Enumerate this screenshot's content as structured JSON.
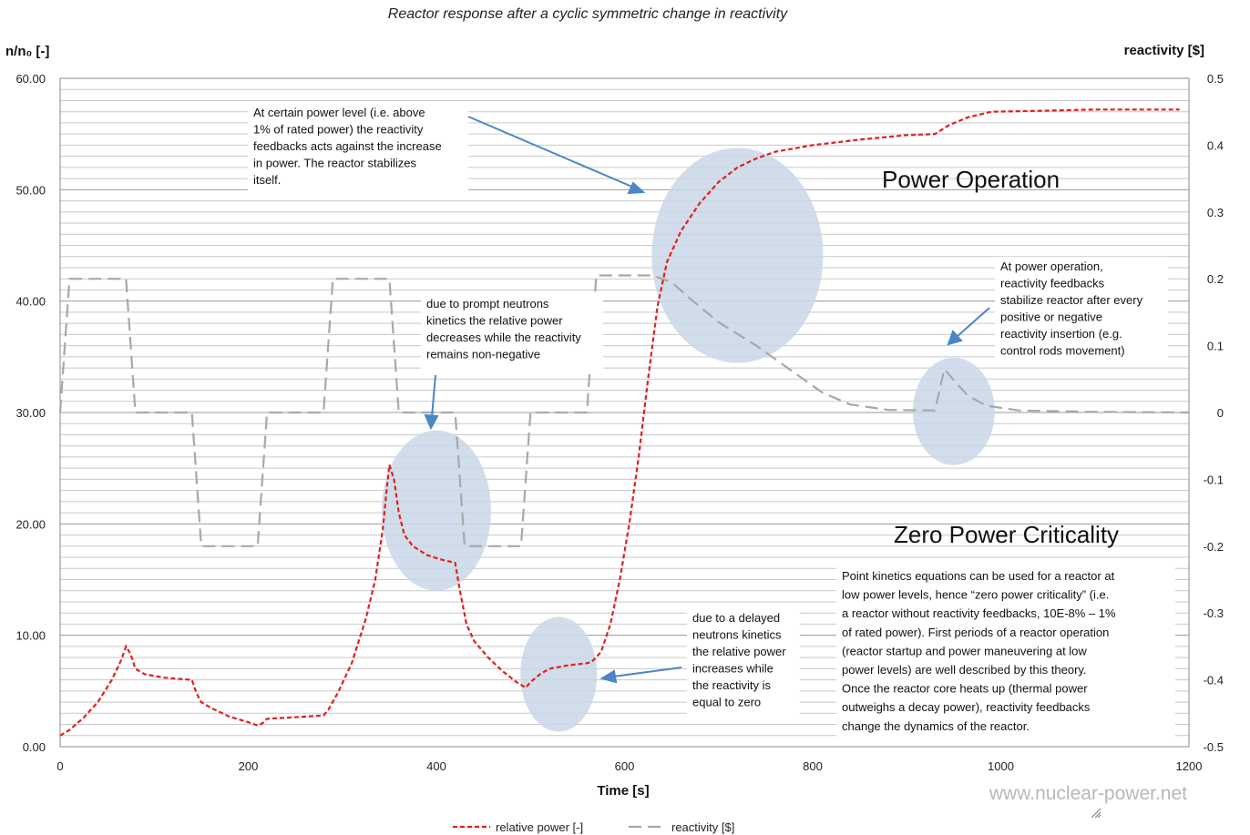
{
  "chart_data": {
    "type": "line",
    "title": "Reactor response after a cyclic symmetric change in reactivity",
    "xlabel": "Time [s]",
    "ylabel_left": "n/n₀ [-]",
    "ylabel_right": "reactivity [$]",
    "xlim": [
      0,
      1200
    ],
    "ylim_left": [
      0,
      60
    ],
    "ylim_right": [
      -0.5,
      0.5
    ],
    "x_ticks": [
      "0",
      "200",
      "400",
      "600",
      "800",
      "1000",
      "1200"
    ],
    "y_left_ticks": [
      "0.00",
      "10.00",
      "20.00",
      "30.00",
      "40.00",
      "50.00",
      "60.00"
    ],
    "y_right_ticks": [
      "-0.5",
      "-0.4",
      "-0.3",
      "-0.2",
      "-0.1",
      "0",
      "0.1",
      "0.2",
      "0.3",
      "0.4",
      "0.5"
    ],
    "series": [
      {
        "name": "relative power [-]",
        "color": "#e0201c",
        "axis": "left",
        "points": [
          [
            0,
            1.0
          ],
          [
            10,
            1.5
          ],
          [
            25,
            2.6
          ],
          [
            40,
            4.0
          ],
          [
            55,
            6.0
          ],
          [
            65,
            7.8
          ],
          [
            70,
            9.0
          ],
          [
            75,
            8.3
          ],
          [
            80,
            7.0
          ],
          [
            90,
            6.5
          ],
          [
            110,
            6.2
          ],
          [
            140,
            6.0
          ],
          [
            145,
            4.8
          ],
          [
            150,
            4.0
          ],
          [
            160,
            3.5
          ],
          [
            180,
            2.7
          ],
          [
            200,
            2.2
          ],
          [
            210,
            1.9
          ],
          [
            215,
            2.1
          ],
          [
            220,
            2.5
          ],
          [
            240,
            2.6
          ],
          [
            260,
            2.7
          ],
          [
            280,
            2.8
          ],
          [
            285,
            3.3
          ],
          [
            295,
            4.8
          ],
          [
            310,
            7.5
          ],
          [
            325,
            11.5
          ],
          [
            335,
            15.0
          ],
          [
            343,
            19.5
          ],
          [
            347,
            23.0
          ],
          [
            350,
            25.3
          ],
          [
            355,
            24.0
          ],
          [
            360,
            21.0
          ],
          [
            366,
            19.0
          ],
          [
            375,
            18.0
          ],
          [
            390,
            17.2
          ],
          [
            405,
            16.8
          ],
          [
            420,
            16.5
          ],
          [
            425,
            14.0
          ],
          [
            432,
            11.0
          ],
          [
            440,
            9.5
          ],
          [
            455,
            8.0
          ],
          [
            470,
            6.8
          ],
          [
            485,
            5.8
          ],
          [
            495,
            5.3
          ],
          [
            500,
            5.8
          ],
          [
            510,
            6.5
          ],
          [
            520,
            7.0
          ],
          [
            540,
            7.3
          ],
          [
            560,
            7.5
          ],
          [
            565,
            7.6
          ],
          [
            575,
            8.5
          ],
          [
            585,
            11.0
          ],
          [
            595,
            15.0
          ],
          [
            605,
            20.0
          ],
          [
            615,
            26.0
          ],
          [
            625,
            33.0
          ],
          [
            635,
            39.5
          ],
          [
            645,
            43.5
          ],
          [
            660,
            46.3
          ],
          [
            680,
            48.8
          ],
          [
            700,
            50.7
          ],
          [
            720,
            52.0
          ],
          [
            740,
            52.8
          ],
          [
            760,
            53.4
          ],
          [
            800,
            54.0
          ],
          [
            850,
            54.5
          ],
          [
            900,
            54.9
          ],
          [
            930,
            55.0
          ],
          [
            945,
            55.8
          ],
          [
            965,
            56.5
          ],
          [
            990,
            57.0
          ],
          [
            1050,
            57.1
          ],
          [
            1100,
            57.2
          ],
          [
            1190,
            57.2
          ]
        ]
      },
      {
        "name": "reactivity [$]",
        "color": "#a0a0a0",
        "axis": "right",
        "points": [
          [
            0,
            0.0
          ],
          [
            10,
            0.2
          ],
          [
            70,
            0.2
          ],
          [
            80,
            0.0
          ],
          [
            140,
            0.0
          ],
          [
            150,
            -0.2
          ],
          [
            210,
            -0.2
          ],
          [
            220,
            0.0
          ],
          [
            280,
            0.0
          ],
          [
            290,
            0.2
          ],
          [
            350,
            0.2
          ],
          [
            360,
            0.0
          ],
          [
            420,
            0.0
          ],
          [
            430,
            -0.2
          ],
          [
            490,
            -0.2
          ],
          [
            500,
            0.0
          ],
          [
            560,
            0.0
          ],
          [
            570,
            0.205
          ],
          [
            630,
            0.205
          ],
          [
            650,
            0.195
          ],
          [
            670,
            0.17
          ],
          [
            700,
            0.135
          ],
          [
            740,
            0.1
          ],
          [
            780,
            0.06
          ],
          [
            810,
            0.03
          ],
          [
            840,
            0.012
          ],
          [
            880,
            0.004
          ],
          [
            930,
            0.003
          ],
          [
            940,
            0.065
          ],
          [
            952,
            0.045
          ],
          [
            965,
            0.025
          ],
          [
            985,
            0.01
          ],
          [
            1020,
            0.003
          ],
          [
            1100,
            0.001
          ],
          [
            1200,
            0.0
          ]
        ]
      }
    ],
    "legend": [
      "relative power [-]",
      "reactivity [$]"
    ],
    "region_labels": [
      "Power Operation",
      "Zero Power Criticality"
    ],
    "annotations": [
      {
        "id": "feedback",
        "lines": [
          "At certain power level (i.e. above",
          "1% of rated power) the reactivity",
          "feedbacks acts against the increase",
          "in power. The reactor stabilizes",
          "itself."
        ]
      },
      {
        "id": "prompt",
        "lines": [
          "due to prompt neutrons",
          "kinetics the relative power",
          "decreases while the reactivity",
          "remains non-negative"
        ]
      },
      {
        "id": "stabilize",
        "lines": [
          "At power operation,",
          "reactivity feedbacks",
          "stabilize reactor after every",
          "positive or negative",
          "reactivity insertion (e.g.",
          "control rods movement)"
        ]
      },
      {
        "id": "delayed",
        "lines": [
          "due to a delayed",
          "neutrons kinetics",
          "the relative power",
          "increases  while",
          "the reactivity is",
          "equal to zero"
        ]
      },
      {
        "id": "pointkin",
        "lines": [
          "Point kinetics equations can be used for a reactor at",
          "low power levels, hence  “zero power criticality” (i.e.",
          "a reactor without reactivity feedbacks, 10E-8% – 1%",
          "of rated power). First periods of a reactor operation",
          "(reactor startup and power maneuvering at low",
          "power levels) are well described by this theory.",
          "Once the reactor core heats up (thermal power",
          "outweighs a decay power), reactivity feedbacks",
          "change the dynamics of the reactor."
        ]
      }
    ]
  },
  "watermark": "www.nuclear-power.net",
  "colors": {
    "power": "#e0201c",
    "reactivity": "#a0a0a0",
    "highlight": "#c9d7e6",
    "arrow": "#4a86c5",
    "grid_major": "#9a9a9a",
    "grid_minor": "#c8c8c8"
  }
}
